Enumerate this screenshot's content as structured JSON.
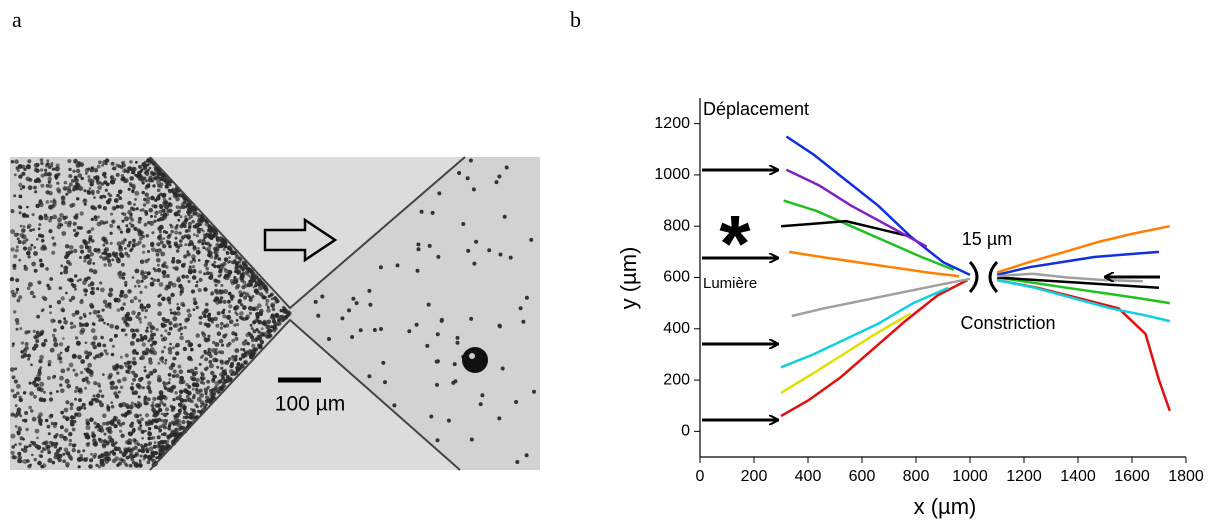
{
  "panel_a": {
    "label": "a",
    "scale_bar_label": "100 µm"
  },
  "chart_data": {
    "type": "line",
    "panel_label": "b",
    "x_label": "x (µm)",
    "y_label": "y (µm)",
    "annotations": {
      "top": "Déplacement",
      "light": "Lumière",
      "star": "*",
      "width": "15 µm",
      "constriction": "Constriction"
    },
    "xlim": [
      0,
      1800
    ],
    "xticks": [
      0,
      200,
      400,
      600,
      800,
      1000,
      1200,
      1400,
      1600,
      1800
    ],
    "ylim": [
      -100,
      1300
    ],
    "yticks": [
      0,
      200,
      400,
      600,
      800,
      1000,
      1200
    ],
    "series": [
      {
        "color": "#1030e0",
        "x": [
          320,
          420,
          540,
          660,
          780,
          900,
          1000
        ],
        "y": [
          1150,
          1080,
          980,
          880,
          760,
          660,
          610
        ]
      },
      {
        "color": "#e01010",
        "x": [
          300,
          400,
          520,
          640,
          760,
          880,
          990
        ],
        "y": [
          60,
          120,
          210,
          320,
          430,
          530,
          590
        ]
      },
      {
        "color": "#20c020",
        "x": [
          310,
          430,
          560,
          690,
          820,
          940
        ],
        "y": [
          900,
          860,
          800,
          740,
          680,
          630
        ]
      },
      {
        "color": "#10d0e0",
        "x": [
          300,
          420,
          540,
          660,
          790,
          920
        ],
        "y": [
          250,
          300,
          360,
          420,
          500,
          560
        ]
      },
      {
        "color": "#ff8000",
        "x": [
          330,
          450,
          580,
          710,
          840,
          960
        ],
        "y": [
          700,
          680,
          660,
          640,
          620,
          605
        ]
      },
      {
        "color": "#000000",
        "x": [
          300,
          420,
          540,
          660,
          780
        ],
        "y": [
          800,
          810,
          820,
          790,
          760
        ]
      },
      {
        "color": "#a0a0a0",
        "x": [
          340,
          460,
          600,
          740,
          880,
          1000
        ],
        "y": [
          450,
          480,
          510,
          540,
          570,
          595
        ]
      },
      {
        "color": "#8020c0",
        "x": [
          320,
          440,
          560,
          700,
          840
        ],
        "y": [
          1020,
          960,
          880,
          800,
          720
        ]
      },
      {
        "color": "#e0e000",
        "x": [
          300,
          410,
          530,
          650,
          780
        ],
        "y": [
          150,
          220,
          300,
          380,
          460
        ]
      },
      {
        "color": "#1030e0",
        "x": [
          1100,
          1220,
          1340,
          1460,
          1580,
          1700
        ],
        "y": [
          610,
          640,
          660,
          680,
          690,
          700
        ]
      },
      {
        "color": "#e01010",
        "x": [
          1100,
          1250,
          1400,
          1550,
          1650,
          1700,
          1740
        ],
        "y": [
          590,
          560,
          520,
          480,
          380,
          200,
          80
        ]
      },
      {
        "color": "#20c020",
        "x": [
          1100,
          1230,
          1360,
          1490,
          1620,
          1740
        ],
        "y": [
          600,
          580,
          560,
          540,
          520,
          500
        ]
      },
      {
        "color": "#ff8000",
        "x": [
          1100,
          1220,
          1350,
          1480,
          1600,
          1740
        ],
        "y": [
          620,
          660,
          700,
          740,
          770,
          800
        ]
      },
      {
        "color": "#000000",
        "x": [
          1100,
          1250,
          1400,
          1550,
          1700
        ],
        "y": [
          600,
          590,
          580,
          570,
          560
        ]
      },
      {
        "color": "#10d0e0",
        "x": [
          1100,
          1240,
          1380,
          1520,
          1660,
          1740
        ],
        "y": [
          590,
          560,
          520,
          480,
          450,
          430
        ]
      },
      {
        "color": "#a0a0a0",
        "x": [
          1100,
          1230,
          1360,
          1500,
          1640
        ],
        "y": [
          605,
          615,
          600,
          590,
          585
        ]
      }
    ]
  }
}
